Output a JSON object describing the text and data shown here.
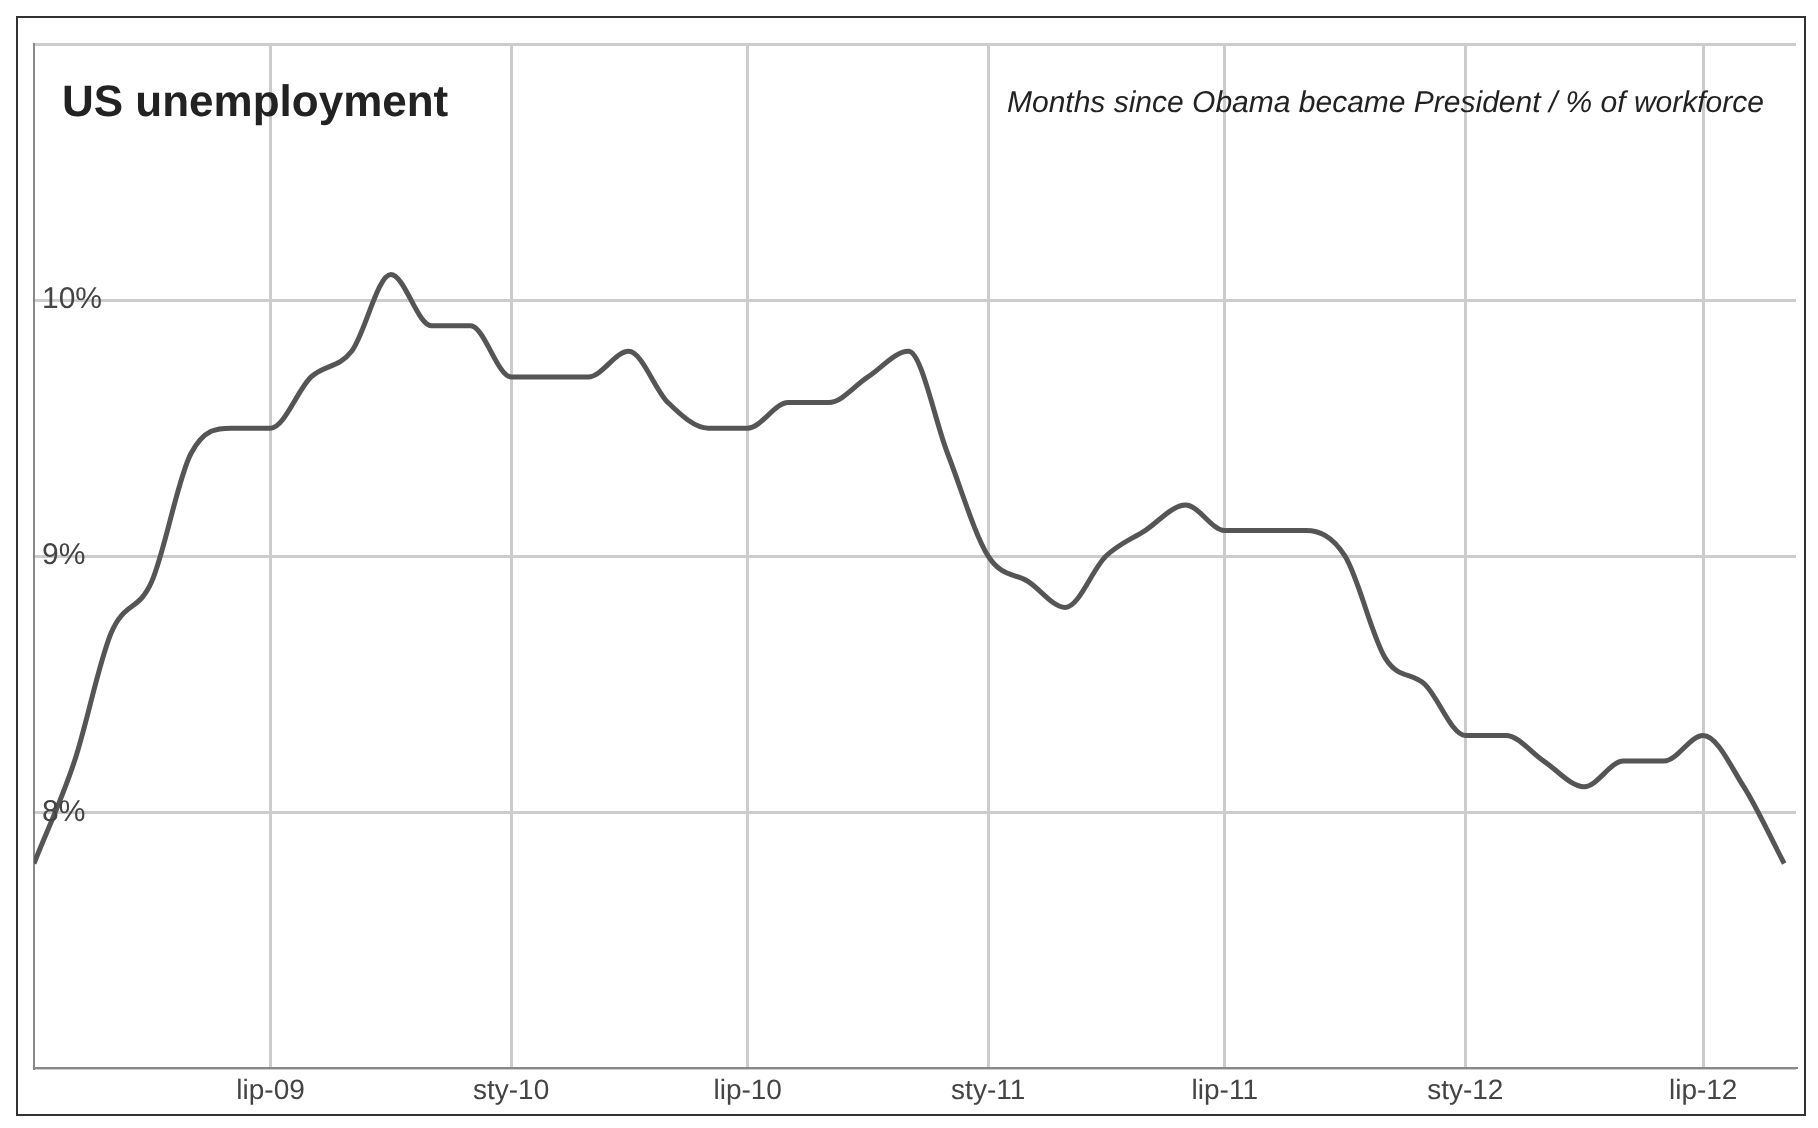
{
  "chart_data": {
    "type": "line",
    "title": "US unemployment",
    "subtitle": "Months since Obama became President / % of workforce",
    "x": [
      "2009-01",
      "2009-02",
      "2009-03",
      "2009-04",
      "2009-05",
      "2009-06",
      "2009-07",
      "2009-08",
      "2009-09",
      "2009-10",
      "2009-11",
      "2009-12",
      "2010-01",
      "2010-02",
      "2010-03",
      "2010-04",
      "2010-05",
      "2010-06",
      "2010-07",
      "2010-08",
      "2010-09",
      "2010-10",
      "2010-11",
      "2010-12",
      "2011-01",
      "2011-02",
      "2011-03",
      "2011-04",
      "2011-05",
      "2011-06",
      "2011-07",
      "2011-08",
      "2011-09",
      "2011-10",
      "2011-11",
      "2011-12",
      "2012-01",
      "2012-02",
      "2012-03",
      "2012-04",
      "2012-05",
      "2012-06",
      "2012-07",
      "2012-08",
      "2012-09"
    ],
    "series": [
      {
        "color": "#555555",
        "values": [
          7.8,
          8.2,
          8.7,
          8.9,
          9.4,
          9.5,
          9.5,
          9.7,
          9.8,
          10.1,
          9.9,
          9.9,
          9.7,
          9.7,
          9.7,
          9.8,
          9.6,
          9.5,
          9.5,
          9.6,
          9.6,
          9.7,
          9.8,
          9.4,
          9.0,
          8.9,
          8.8,
          9.0,
          9.1,
          9.2,
          9.1,
          9.1,
          9.1,
          9.0,
          8.6,
          8.5,
          8.3,
          8.3,
          8.2,
          8.1,
          8.2,
          8.2,
          8.3,
          8.1,
          7.8
        ]
      }
    ],
    "xlim": [
      "2009-01",
      "2012-09-10"
    ],
    "xticks": [
      {
        "value": "2009-07",
        "label": "lip-09"
      },
      {
        "value": "2010-01",
        "label": "sty-10"
      },
      {
        "value": "2010-07",
        "label": "lip-10"
      },
      {
        "value": "2011-01",
        "label": "sty-11"
      },
      {
        "value": "2011-07",
        "label": "lip-11"
      },
      {
        "value": "2012-01",
        "label": "sty-12"
      },
      {
        "value": "2012-07",
        "label": "lip-12"
      }
    ],
    "ylim": [
      7,
      11
    ],
    "yticks": [
      {
        "value": 7,
        "label": null
      },
      {
        "value": 8,
        "label": "8%"
      },
      {
        "value": 9,
        "label": "9%"
      },
      {
        "value": 10,
        "label": "10%"
      },
      {
        "value": 11,
        "label": null
      }
    ],
    "grid": true,
    "legend": false,
    "marker": "none",
    "line_style": "solid"
  }
}
